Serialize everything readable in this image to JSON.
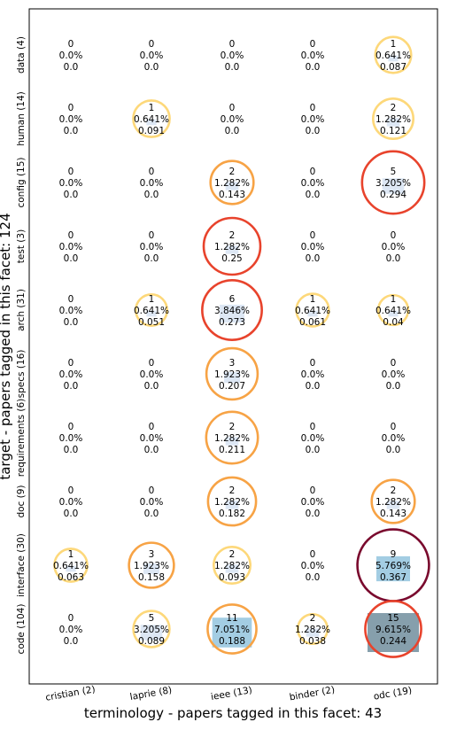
{
  "chart_data": {
    "type": "heatmap",
    "xlabel": "terminology  -  papers tagged in this facet: 43",
    "ylabel": "target  -  papers tagged in this facet: 124",
    "columns": [
      "cristian (2)",
      "laprie (8)",
      "ieee (13)",
      "binder (2)",
      "odc (19)"
    ],
    "rows": [
      "data (4)",
      "human (14)",
      "config (15)",
      "test (3)",
      "arch (31)",
      "specs (16)",
      "requirements (6)",
      "doc (9)",
      "interface (30)",
      "code (104)"
    ],
    "cells": [
      [
        [
          "0",
          "0.0%",
          "0.0"
        ],
        [
          "0",
          "0.0%",
          "0.0"
        ],
        [
          "0",
          "0.0%",
          "0.0"
        ],
        [
          "0",
          "0.0%",
          "0.0"
        ],
        [
          "1",
          "0.641%",
          "0.087"
        ]
      ],
      [
        [
          "0",
          "0.0%",
          "0.0"
        ],
        [
          "1",
          "0.641%",
          "0.091"
        ],
        [
          "0",
          "0.0%",
          "0.0"
        ],
        [
          "0",
          "0.0%",
          "0.0"
        ],
        [
          "2",
          "1.282%",
          "0.121"
        ]
      ],
      [
        [
          "0",
          "0.0%",
          "0.0"
        ],
        [
          "0",
          "0.0%",
          "0.0"
        ],
        [
          "2",
          "1.282%",
          "0.143"
        ],
        [
          "0",
          "0.0%",
          "0.0"
        ],
        [
          "5",
          "3.205%",
          "0.294"
        ]
      ],
      [
        [
          "0",
          "0.0%",
          "0.0"
        ],
        [
          "0",
          "0.0%",
          "0.0"
        ],
        [
          "2",
          "1.282%",
          "0.25"
        ],
        [
          "0",
          "0.0%",
          "0.0"
        ],
        [
          "0",
          "0.0%",
          "0.0"
        ]
      ],
      [
        [
          "0",
          "0.0%",
          "0.0"
        ],
        [
          "1",
          "0.641%",
          "0.051"
        ],
        [
          "6",
          "3.846%",
          "0.273"
        ],
        [
          "1",
          "0.641%",
          "0.061"
        ],
        [
          "1",
          "0.641%",
          "0.04"
        ]
      ],
      [
        [
          "0",
          "0.0%",
          "0.0"
        ],
        [
          "0",
          "0.0%",
          "0.0"
        ],
        [
          "3",
          "1.923%",
          "0.207"
        ],
        [
          "0",
          "0.0%",
          "0.0"
        ],
        [
          "0",
          "0.0%",
          "0.0"
        ]
      ],
      [
        [
          "0",
          "0.0%",
          "0.0"
        ],
        [
          "0",
          "0.0%",
          "0.0"
        ],
        [
          "2",
          "1.282%",
          "0.211"
        ],
        [
          "0",
          "0.0%",
          "0.0"
        ],
        [
          "0",
          "0.0%",
          "0.0"
        ]
      ],
      [
        [
          "0",
          "0.0%",
          "0.0"
        ],
        [
          "0",
          "0.0%",
          "0.0"
        ],
        [
          "2",
          "1.282%",
          "0.182"
        ],
        [
          "0",
          "0.0%",
          "0.0"
        ],
        [
          "2",
          "1.282%",
          "0.143"
        ]
      ],
      [
        [
          "1",
          "0.641%",
          "0.063"
        ],
        [
          "3",
          "1.923%",
          "0.158"
        ],
        [
          "2",
          "1.282%",
          "0.093"
        ],
        [
          "0",
          "0.0%",
          "0.0"
        ],
        [
          "9",
          "5.769%",
          "0.367"
        ]
      ],
      [
        [
          "0",
          "0.0%",
          "0.0"
        ],
        [
          "5",
          "3.205%",
          "0.089"
        ],
        [
          "11",
          "7.051%",
          "0.188"
        ],
        [
          "2",
          "1.282%",
          "0.038"
        ],
        [
          "15",
          "9.615%",
          "0.244"
        ]
      ]
    ],
    "colors": {
      "square_low": "#dbe6f3",
      "square_mid": "#9ecae1",
      "square_high": "#7f9aa8",
      "ring_low": "#fdd87a",
      "ring_mid": "#f7a345",
      "ring_high": "#e8432c",
      "ring_max": "#7a0a2e"
    }
  }
}
